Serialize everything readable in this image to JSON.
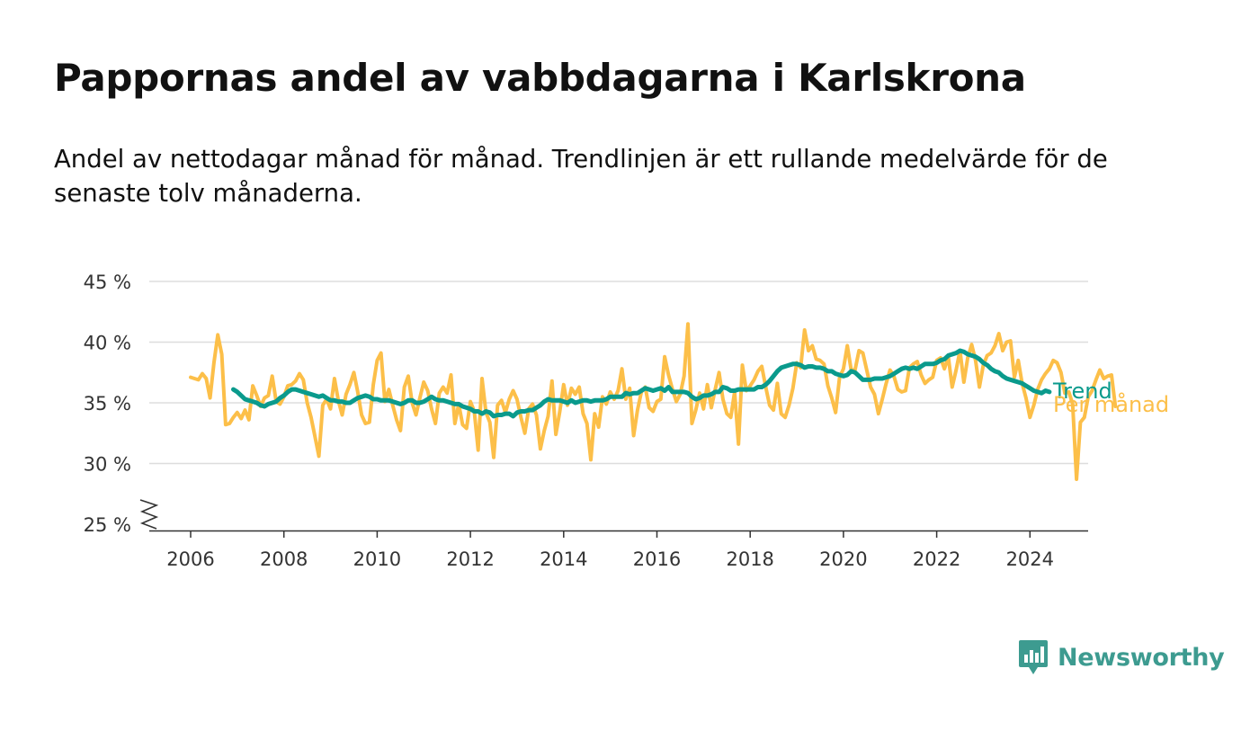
{
  "chart_data": {
    "type": "line",
    "title": "Pappornas andel av vabbdagarna i Karlskrona",
    "subtitle": "Andel av nettodagar månad för månad. Trendlinjen är ett rullande medelvärde för de senaste tolv månaderna.",
    "xlabel": "",
    "ylabel": "",
    "ylim": [
      25,
      45
    ],
    "y_ticks": [
      45,
      40,
      35,
      30,
      25
    ],
    "y_tick_labels": [
      "45 %",
      "40 %",
      "35 %",
      "30 %",
      "25 %"
    ],
    "x_ticks": [
      2006,
      2008,
      2010,
      2012,
      2014,
      2016,
      2018,
      2020,
      2022,
      2024
    ],
    "x_tick_labels": [
      "2006",
      "2008",
      "2010",
      "2012",
      "2014",
      "2016",
      "2018",
      "2020",
      "2022",
      "2024"
    ],
    "x_range": [
      2005.1,
      2025.2
    ],
    "axis_break": true,
    "grid": true,
    "colors": {
      "monthly": "#fcbf49",
      "trend": "#0a9a8c",
      "grid": "#dddddd",
      "axis": "#333333"
    },
    "series": [
      {
        "name": "Per månad",
        "x_start": 2006.0,
        "x_step": 0.08333,
        "values": [
          37.1,
          37.0,
          36.9,
          37.4,
          37.0,
          35.4,
          38.3,
          40.6,
          39.0,
          33.2,
          33.3,
          33.8,
          34.2,
          33.7,
          34.4,
          33.6,
          36.4,
          35.6,
          34.7,
          35.4,
          35.6,
          37.2,
          35.1,
          34.9,
          35.5,
          36.4,
          36.5,
          36.8,
          37.4,
          36.9,
          35.0,
          33.8,
          32.2,
          30.6,
          34.8,
          35.3,
          34.5,
          37.0,
          35.2,
          34.0,
          35.7,
          36.5,
          37.5,
          35.9,
          34.0,
          33.3,
          33.4,
          36.5,
          38.5,
          39.1,
          35.1,
          36.1,
          34.8,
          33.6,
          32.7,
          36.3,
          37.2,
          35.0,
          34.0,
          35.4,
          36.7,
          36.0,
          34.5,
          33.3,
          35.8,
          36.3,
          35.8,
          37.3,
          33.3,
          34.9,
          33.2,
          32.9,
          35.1,
          34.3,
          31.1,
          37.0,
          34.2,
          33.4,
          30.5,
          34.8,
          35.2,
          34.2,
          35.3,
          36.0,
          35.3,
          33.8,
          32.5,
          34.5,
          34.9,
          34.0,
          31.2,
          32.7,
          33.9,
          36.8,
          32.4,
          34.3,
          36.5,
          34.8,
          36.2,
          35.7,
          36.3,
          34.1,
          33.3,
          30.3,
          34.1,
          33.0,
          35.5,
          34.9,
          35.9,
          35.3,
          36.0,
          37.8,
          35.3,
          36.2,
          32.3,
          34.4,
          35.9,
          36.3,
          34.6,
          34.3,
          35.1,
          35.3,
          38.8,
          37.3,
          36.1,
          35.1,
          35.7,
          37.2,
          41.5,
          33.3,
          34.4,
          35.8,
          34.5,
          36.5,
          34.6,
          36.1,
          37.5,
          35.3,
          34.1,
          33.8,
          35.9,
          31.6,
          38.1,
          36.0,
          36.4,
          36.9,
          37.6,
          38.0,
          36.3,
          34.8,
          34.4,
          36.6,
          34.1,
          33.8,
          34.8,
          36.2,
          38.3,
          37.9,
          41.0,
          39.3,
          39.7,
          38.6,
          38.5,
          38.2,
          36.4,
          35.4,
          34.2,
          37.1,
          37.8,
          39.7,
          37.7,
          37.7,
          39.3,
          39.1,
          37.7,
          36.3,
          35.7,
          34.1,
          35.3,
          36.6,
          37.7,
          37.2,
          36.1,
          35.9,
          36.0,
          37.9,
          38.2,
          38.4,
          37.3,
          36.6,
          36.9,
          37.1,
          38.5,
          38.7,
          37.8,
          38.8,
          36.3,
          37.7,
          39.3,
          36.7,
          38.7,
          39.8,
          38.5,
          36.3,
          38.1,
          38.9,
          39.1,
          39.7,
          40.7,
          39.3,
          40.0,
          40.1,
          37.1,
          38.5,
          36.6,
          35.4,
          33.8,
          34.8,
          36.1,
          36.9,
          37.4,
          37.8,
          38.5,
          38.3,
          37.5,
          35.8,
          35.9,
          34.9,
          28.7,
          33.4,
          33.8,
          35.5,
          36.0,
          36.9,
          37.7,
          37.0,
          37.2,
          37.3,
          34.7
        ]
      },
      {
        "name": "Trend",
        "x_start": 2006.917,
        "x_step": 0.08333,
        "values": [
          36.1,
          35.9,
          35.6,
          35.3,
          35.2,
          35.1,
          35.0,
          34.8,
          34.7,
          34.9,
          35.0,
          35.1,
          35.4,
          35.6,
          35.9,
          36.1,
          36.1,
          36.0,
          35.9,
          35.8,
          35.7,
          35.6,
          35.5,
          35.6,
          35.4,
          35.2,
          35.2,
          35.1,
          35.1,
          35.0,
          35.0,
          35.2,
          35.4,
          35.5,
          35.6,
          35.5,
          35.3,
          35.3,
          35.2,
          35.2,
          35.2,
          35.1,
          35.0,
          34.9,
          35.0,
          35.2,
          35.2,
          35.0,
          35.0,
          35.1,
          35.3,
          35.5,
          35.3,
          35.2,
          35.2,
          35.1,
          35.0,
          34.9,
          34.9,
          34.7,
          34.6,
          34.5,
          34.3,
          34.3,
          34.1,
          34.3,
          34.2,
          33.9,
          34.0,
          34.0,
          34.1,
          34.1,
          33.9,
          34.2,
          34.3,
          34.3,
          34.4,
          34.4,
          34.6,
          34.8,
          35.1,
          35.3,
          35.2,
          35.2,
          35.2,
          35.1,
          35.0,
          35.2,
          35.0,
          35.1,
          35.2,
          35.2,
          35.1,
          35.2,
          35.2,
          35.2,
          35.3,
          35.5,
          35.5,
          35.5,
          35.5,
          35.8,
          35.7,
          35.8,
          35.8,
          36.0,
          36.2,
          36.1,
          36.0,
          36.1,
          36.2,
          36.0,
          36.3,
          35.9,
          35.9,
          35.9,
          35.9,
          35.8,
          35.5,
          35.3,
          35.4,
          35.6,
          35.6,
          35.7,
          35.9,
          35.9,
          36.3,
          36.2,
          36.0,
          36.0,
          36.1,
          36.1,
          36.1,
          36.1,
          36.1,
          36.3,
          36.3,
          36.5,
          36.8,
          37.2,
          37.6,
          37.9,
          38.0,
          38.1,
          38.2,
          38.2,
          38.1,
          37.9,
          38.0,
          38.0,
          37.9,
          37.9,
          37.8,
          37.6,
          37.6,
          37.4,
          37.3,
          37.2,
          37.3,
          37.6,
          37.5,
          37.2,
          36.9,
          36.9,
          36.9,
          37.0,
          37.0,
          37.0,
          37.1,
          37.2,
          37.4,
          37.6,
          37.8,
          37.9,
          37.8,
          37.9,
          37.8,
          38.0,
          38.2,
          38.2,
          38.2,
          38.3,
          38.5,
          38.6,
          38.9,
          39.0,
          39.1,
          39.3,
          39.2,
          39.0,
          38.9,
          38.8,
          38.6,
          38.3,
          38.1,
          37.8,
          37.6,
          37.5,
          37.2,
          37.0,
          36.9,
          36.8,
          36.7,
          36.6,
          36.4,
          36.2,
          36.0,
          35.9,
          35.8,
          36.0,
          35.9
        ]
      }
    ]
  },
  "brand": {
    "name": "Newsworthy",
    "icon": "newsworthy-logo-icon",
    "color": "#3d9b90"
  }
}
